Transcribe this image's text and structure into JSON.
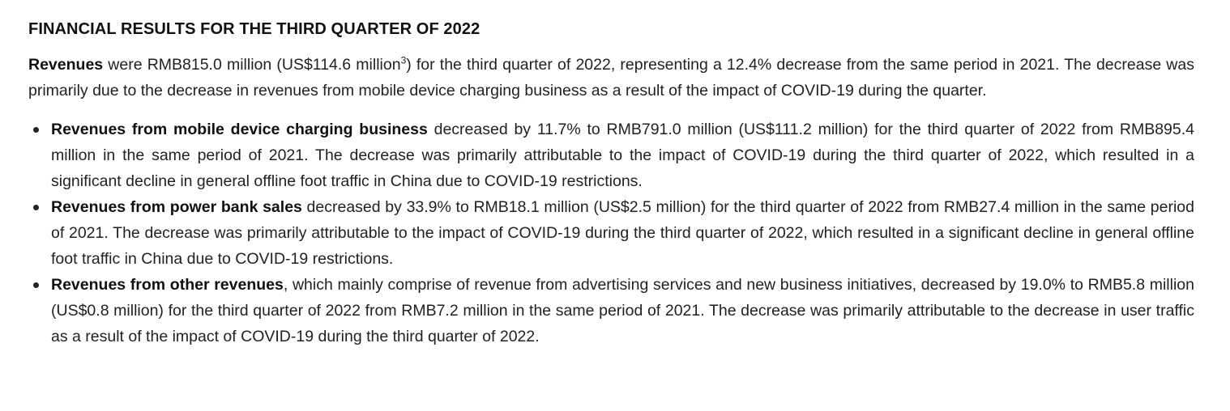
{
  "heading": "FINANCIAL RESULTS FOR THE THIRD QUARTER OF 2022",
  "intro": {
    "bold": "Revenues",
    "text_a": " were RMB815.0 million (US$114.6 million",
    "footnote": "3",
    "text_b": ") for the third quarter of 2022, representing a 12.4% decrease from the same period in 2021. The decrease was primarily due to the decrease in revenues from mobile device charging business as a result of the impact of COVID-19 during the quarter."
  },
  "bullets": [
    {
      "bold": "Revenues from mobile device charging business",
      "text": " decreased by 11.7% to RMB791.0 million (US$111.2 million) for the third quarter of 2022 from RMB895.4 million in the same period of 2021. The decrease was primarily attributable to the impact of COVID-19 during the third quarter of 2022, which resulted in a significant decline in general offline foot traffic in China due to COVID-19 restrictions."
    },
    {
      "bold": "Revenues from power bank sales",
      "text": " decreased by 33.9% to RMB18.1 million (US$2.5 million) for the third quarter of 2022 from RMB27.4 million in the same period of 2021. The decrease was primarily attributable to the impact of COVID-19 during the third quarter of 2022, which resulted in a significant decline in general offline foot traffic in China due to COVID-19 restrictions."
    },
    {
      "bold": "Revenues from other revenues",
      "text": ", which mainly comprise of revenue from advertising services and new business initiatives, decreased by 19.0% to RMB5.8 million (US$0.8 million) for the third quarter of 2022 from RMB7.2 million in the same period of 2021. The decrease was primarily attributable to the decrease in user traffic as a result of the impact of COVID-19 during the third quarter of 2022."
    }
  ]
}
